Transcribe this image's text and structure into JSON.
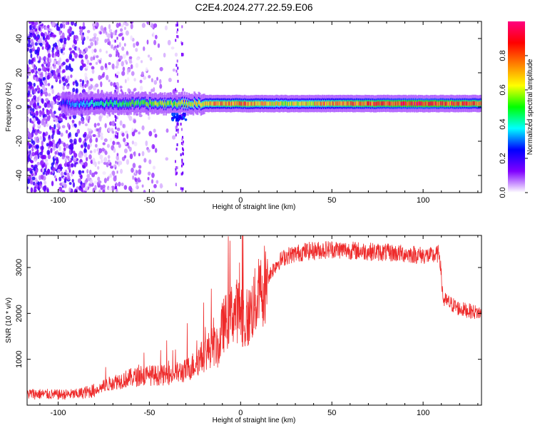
{
  "figure": {
    "title": "C2E4.2024.277.22.59.E06"
  },
  "chart_data": [
    {
      "type": "heatmap",
      "xlabel": "Height of straight line (km)",
      "ylabel": "Frequency (Hz)",
      "xlim": [
        -117,
        132
      ],
      "ylim": [
        -50,
        50
      ],
      "xticks": [
        -100,
        -50,
        0,
        50,
        100
      ],
      "yticks": [
        -40,
        -20,
        0,
        20,
        40
      ],
      "colorbar": {
        "label": "Normalized spectral amplitude",
        "range": [
          0,
          1
        ],
        "ticks": [
          0.0,
          0.2,
          0.4,
          0.6,
          0.8
        ],
        "colormap": [
          "#ffffff",
          "#8000ff",
          "#0000ff",
          "#00ffff",
          "#00ff00",
          "#ffff00",
          "#ff8000",
          "#ff0000",
          "#ff0080"
        ]
      },
      "ridge": {
        "frequency_hz": 2,
        "x_start_km": -98,
        "points": [
          {
            "x": -98,
            "amp": 0.25
          },
          {
            "x": -80,
            "amp": 0.4
          },
          {
            "x": -60,
            "amp": 0.5
          },
          {
            "x": -45,
            "amp": 0.55
          },
          {
            "x": -30,
            "amp": 0.6
          },
          {
            "x": -15,
            "amp": 0.7
          },
          {
            "x": 0,
            "amp": 0.75
          },
          {
            "x": 25,
            "amp": 0.6
          },
          {
            "x": 60,
            "amp": 0.75
          },
          {
            "x": 100,
            "amp": 0.85
          },
          {
            "x": 132,
            "amp": 0.75
          }
        ]
      }
    },
    {
      "type": "line",
      "xlabel": "Height of straight line (km)",
      "ylabel": "SNR (10 * v/v)",
      "xlim": [
        -117,
        132
      ],
      "ylim": [
        0,
        3700
      ],
      "xticks": [
        -100,
        -50,
        0,
        50,
        100
      ],
      "yticks": [
        1000,
        2000,
        3000
      ],
      "color": "#ee2a2a",
      "series": [
        {
          "points": [
            {
              "x": -117,
              "y": 250
            },
            {
              "x": -100,
              "y": 230
            },
            {
              "x": -90,
              "y": 240
            },
            {
              "x": -80,
              "y": 320
            },
            {
              "x": -70,
              "y": 500
            },
            {
              "x": -60,
              "y": 600
            },
            {
              "x": -50,
              "y": 650
            },
            {
              "x": -40,
              "y": 650
            },
            {
              "x": -30,
              "y": 750
            },
            {
              "x": -25,
              "y": 900
            },
            {
              "x": -20,
              "y": 1100
            },
            {
              "x": -15,
              "y": 1300
            },
            {
              "x": -12,
              "y": 1200
            },
            {
              "x": -10,
              "y": 1700
            },
            {
              "x": -5,
              "y": 2000
            },
            {
              "x": 0,
              "y": 2100
            },
            {
              "x": 3,
              "y": 1700
            },
            {
              "x": 5,
              "y": 2000
            },
            {
              "x": 10,
              "y": 2400
            },
            {
              "x": 15,
              "y": 2800
            },
            {
              "x": 20,
              "y": 3100
            },
            {
              "x": 25,
              "y": 3250
            },
            {
              "x": 35,
              "y": 3350
            },
            {
              "x": 50,
              "y": 3400
            },
            {
              "x": 70,
              "y": 3350
            },
            {
              "x": 90,
              "y": 3300
            },
            {
              "x": 105,
              "y": 3250
            },
            {
              "x": 109,
              "y": 3300
            },
            {
              "x": 111,
              "y": 2300
            },
            {
              "x": 120,
              "y": 2100
            },
            {
              "x": 132,
              "y": 2000
            }
          ]
        }
      ]
    }
  ]
}
